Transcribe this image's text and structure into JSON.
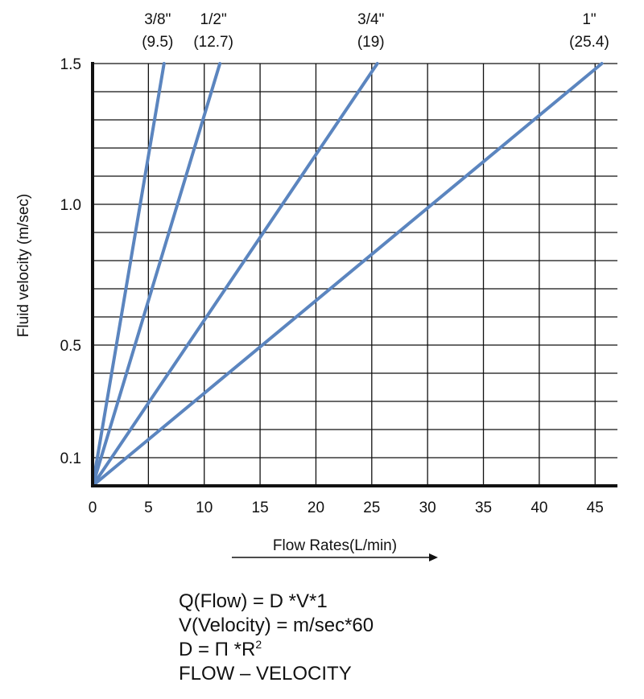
{
  "chart_data": {
    "type": "line",
    "title": "",
    "xlabel": "Flow Rates(L/min)",
    "ylabel": "Fluid velocity (m/sec)",
    "xlim": [
      0,
      47
    ],
    "ylim": [
      0,
      1.5
    ],
    "x_ticks": [
      0,
      5,
      10,
      15,
      20,
      25,
      30,
      35,
      40,
      45
    ],
    "x_tick_labels": [
      "0",
      "5",
      "10",
      "15",
      "20",
      "25",
      "30",
      "35",
      "40",
      "45"
    ],
    "y_ticks": [
      0.1,
      0.5,
      1.0,
      1.5
    ],
    "y_tick_labels": [
      "0.1",
      "0.5",
      "1.0",
      "1.5"
    ],
    "grid": true,
    "series": [
      {
        "name_line1": "3/8\"",
        "name_line2": "(9.5)",
        "points": [
          [
            0,
            0
          ],
          [
            6.4,
            1.5
          ]
        ]
      },
      {
        "name_line1": "1/2\"",
        "name_line2": "(12.7)",
        "points": [
          [
            0,
            0
          ],
          [
            11.4,
            1.5
          ]
        ]
      },
      {
        "name_line1": "3/4\"",
        "name_line2": "(19)",
        "points": [
          [
            0,
            0
          ],
          [
            25.5,
            1.5
          ]
        ]
      },
      {
        "name_line1": "1\"",
        "name_line2": "(25.4)",
        "points": [
          [
            0,
            0
          ],
          [
            45.6,
            1.5
          ]
        ]
      }
    ],
    "colors": {
      "series": "#5B85BF",
      "grid": "#111111"
    }
  },
  "formulas": {
    "flow": "Q(Flow) = D  *V*1",
    "velocity": "V(Velocity) = m/sec*60",
    "diameter_base": "D =  Π *R",
    "diameter_exp": "2",
    "title": "FLOW – VELOCITY"
  }
}
